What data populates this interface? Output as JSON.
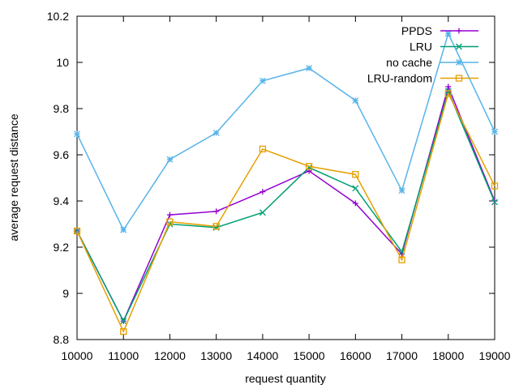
{
  "chart_data": {
    "type": "line",
    "xlabel": "request quantity",
    "ylabel": "average request distance",
    "xlim": [
      10000,
      19000
    ],
    "ylim": [
      8.8,
      10.2
    ],
    "x_ticks": [
      "10000",
      "11000",
      "12000",
      "13000",
      "14000",
      "15000",
      "16000",
      "17000",
      "18000",
      "19000"
    ],
    "y_ticks": [
      "8.8",
      "9",
      "9.2",
      "9.4",
      "9.6",
      "9.8",
      "10",
      "10.2"
    ],
    "grid": false,
    "legend_position": "top-right",
    "series": [
      {
        "name": "PPDS",
        "color": "#9400d3",
        "marker": "plus",
        "x": [
          10000,
          11000,
          12000,
          13000,
          14000,
          15000,
          16000,
          17000,
          18000,
          19000
        ],
        "values": [
          9.27,
          8.88,
          9.34,
          9.355,
          9.44,
          9.53,
          9.39,
          9.17,
          9.895,
          9.4
        ]
      },
      {
        "name": "LRU",
        "color": "#009e73",
        "marker": "cross",
        "x": [
          10000,
          11000,
          12000,
          13000,
          14000,
          15000,
          16000,
          17000,
          18000,
          19000
        ],
        "values": [
          9.27,
          8.88,
          9.3,
          9.285,
          9.35,
          9.545,
          9.455,
          9.18,
          9.875,
          9.395
        ]
      },
      {
        "name": "no cache",
        "color": "#56b4e9",
        "marker": "star",
        "x": [
          10000,
          11000,
          12000,
          13000,
          14000,
          15000,
          16000,
          17000,
          18000,
          19000
        ],
        "values": [
          9.69,
          9.275,
          9.58,
          9.695,
          9.92,
          9.975,
          9.835,
          9.445,
          10.125,
          9.7
        ]
      },
      {
        "name": "LRU-random",
        "color": "#e69f00",
        "marker": "square",
        "x": [
          10000,
          11000,
          12000,
          13000,
          14000,
          15000,
          16000,
          17000,
          18000,
          19000
        ],
        "values": [
          9.27,
          8.835,
          9.31,
          9.29,
          9.625,
          9.55,
          9.515,
          9.145,
          9.865,
          9.465
        ]
      }
    ]
  }
}
